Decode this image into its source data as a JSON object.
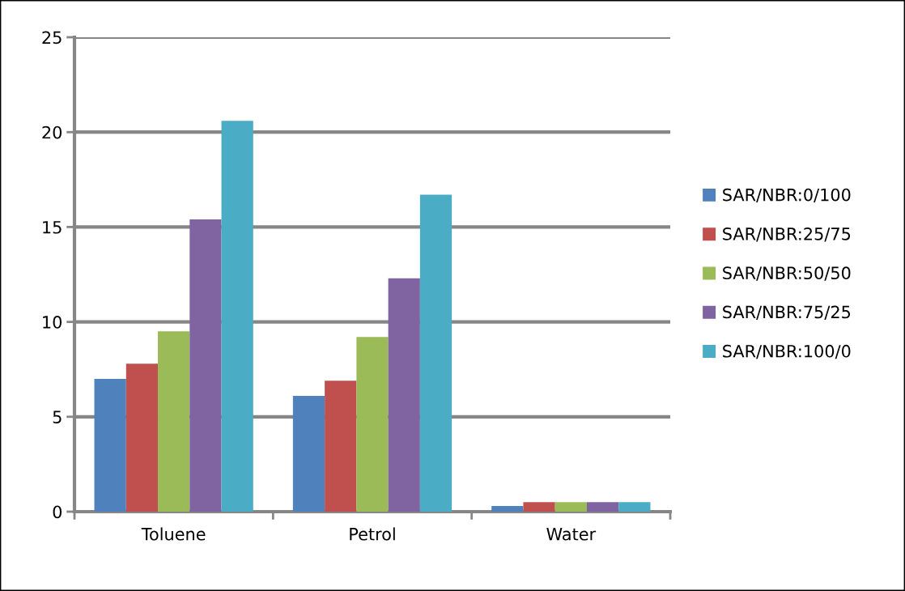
{
  "chart_data": {
    "type": "bar",
    "categories": [
      "Toluene",
      "Petrol",
      "Water"
    ],
    "series": [
      {
        "name": "SAR/NBR:0/100",
        "color": "#4f81bd",
        "values": [
          7.0,
          6.1,
          0.3
        ]
      },
      {
        "name": "SAR/NBR:25/75",
        "color": "#c0504d",
        "values": [
          7.8,
          6.9,
          0.5
        ]
      },
      {
        "name": "SAR/NBR:50/50",
        "color": "#9bbb59",
        "values": [
          9.5,
          9.2,
          0.5
        ]
      },
      {
        "name": "SAR/NBR:75/25",
        "color": "#8064a2",
        "values": [
          15.4,
          12.3,
          0.5
        ]
      },
      {
        "name": "SAR/NBR:100/0",
        "color": "#4bacc6",
        "values": [
          20.6,
          16.7,
          0.5
        ]
      }
    ],
    "ylim": [
      0,
      25
    ],
    "yticks": [
      0,
      5,
      10,
      15,
      20,
      25
    ],
    "grid": "y",
    "legend": "right"
  }
}
